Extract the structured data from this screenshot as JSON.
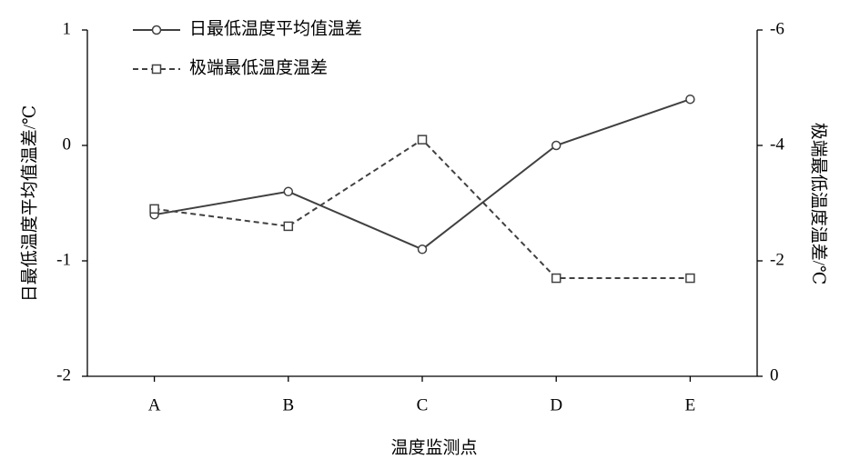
{
  "chart_data": {
    "type": "line",
    "x_label": "温度监测点",
    "y_label": "日最低温度平均值温差/℃",
    "y2_label": "极端最低温度温差/℃",
    "categories": [
      "A",
      "B",
      "C",
      "D",
      "E"
    ],
    "ylim": [
      -2,
      1
    ],
    "yticks": [
      -2,
      -1,
      0,
      1
    ],
    "y2lim": [
      0,
      -6
    ],
    "y2ticks": [
      -6,
      -4,
      -2,
      0
    ],
    "grid": false,
    "legend": "top-left",
    "series": [
      {
        "name": "日最低温度平均值温差",
        "color": "#404040",
        "line_style": "solid",
        "marker": "circle",
        "values": [
          -0.6,
          -0.4,
          -0.9,
          0,
          0.4
        ]
      },
      {
        "name": "极端最低温度温差",
        "color": "#404040",
        "line_style": "dashed",
        "marker": "square",
        "axis": "y2",
        "values": [
          -2.9,
          -2.6,
          -4.1,
          -1.7,
          -1.7
        ]
      }
    ]
  }
}
